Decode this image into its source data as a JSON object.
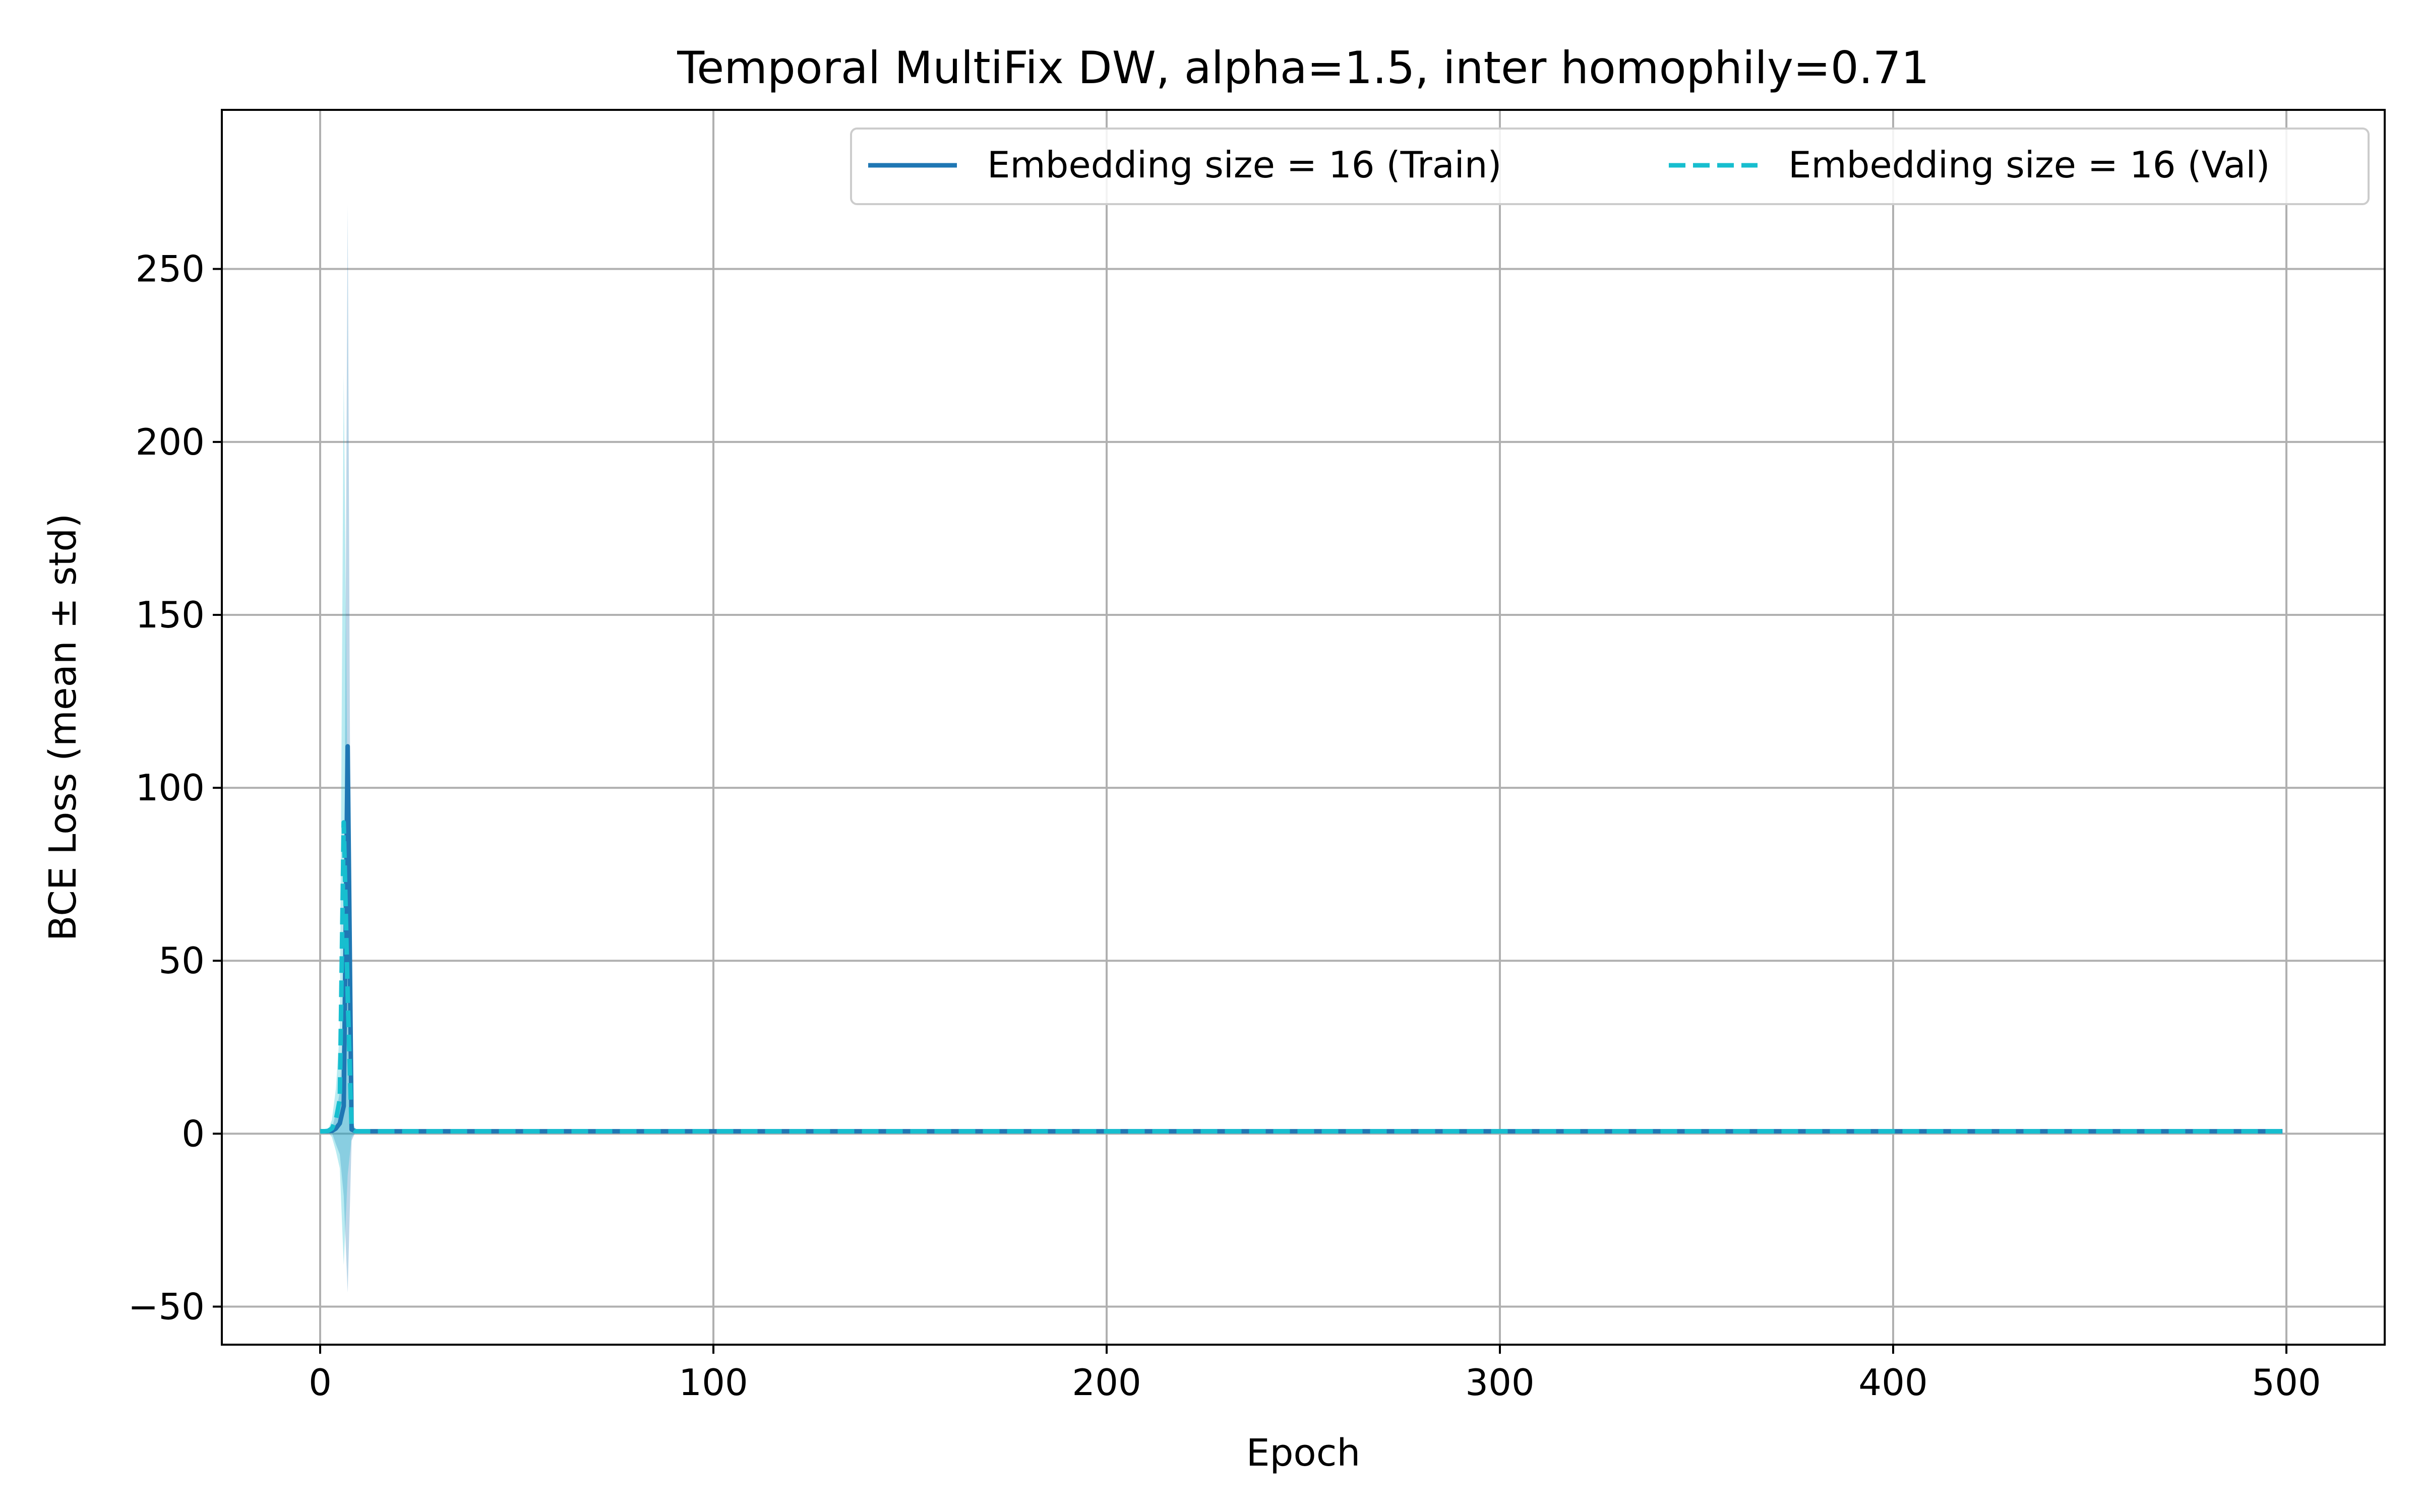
{
  "chart_data": {
    "type": "line",
    "title": "Temporal MultiFix DW, alpha=1.5, inter homophily=0.71",
    "xlabel": "Epoch",
    "ylabel": "BCE Loss (mean ± std)",
    "xlim": [
      -25,
      525
    ],
    "ylim": [
      -61,
      296
    ],
    "xticks": [
      0,
      100,
      200,
      300,
      400,
      500
    ],
    "xtick_labels": [
      "0",
      "100",
      "200",
      "300",
      "400",
      "500"
    ],
    "yticks": [
      -50,
      0,
      50,
      100,
      150,
      200,
      250
    ],
    "ytick_labels": [
      "−50",
      "0",
      "50",
      "100",
      "150",
      "200",
      "250"
    ],
    "grid": true,
    "legend_position": "top-right",
    "legend_columns": 2,
    "series": [
      {
        "name": "Embedding size = 16 (Train)",
        "color": "#1f77b4",
        "linestyle": "solid",
        "x": [
          0,
          1,
          2,
          3,
          4,
          5,
          6,
          7,
          8,
          9,
          10,
          20,
          50,
          100,
          150,
          200,
          250,
          300,
          350,
          400,
          450,
          499
        ],
        "mean": [
          0.7,
          0.7,
          0.7,
          0.8,
          1.5,
          3,
          8,
          112,
          1.2,
          0.7,
          0.7,
          0.69,
          0.69,
          0.69,
          0.69,
          0.69,
          0.69,
          0.69,
          0.69,
          0.69,
          0.69,
          0.69
        ],
        "lower": [
          0.6,
          0.6,
          0.5,
          0.3,
          -3,
          -6,
          -18,
          -46,
          -2,
          0.5,
          0.6,
          0.6,
          0.6,
          0.6,
          0.6,
          0.6,
          0.6,
          0.6,
          0.6,
          0.6,
          0.6,
          0.6
        ],
        "upper": [
          0.8,
          0.8,
          0.9,
          1.3,
          6,
          12,
          34,
          269,
          4.4,
          0.9,
          0.8,
          0.78,
          0.78,
          0.78,
          0.78,
          0.78,
          0.78,
          0.78,
          0.78,
          0.78,
          0.78,
          0.78
        ]
      },
      {
        "name": "Embedding size = 16 (Val)",
        "color": "#17becf",
        "linestyle": "dashed",
        "x": [
          0,
          1,
          2,
          3,
          4,
          5,
          6,
          7,
          8,
          9,
          10,
          20,
          50,
          100,
          150,
          200,
          250,
          300,
          350,
          400,
          450,
          499
        ],
        "mean": [
          0.7,
          0.7,
          0.8,
          1.5,
          4,
          10,
          90,
          40,
          1.5,
          0.7,
          0.7,
          0.69,
          0.69,
          0.69,
          0.69,
          0.69,
          0.69,
          0.69,
          0.69,
          0.69,
          0.69,
          0.69
        ],
        "lower": [
          0.6,
          0.6,
          0.5,
          -1,
          -5,
          -10,
          -38,
          -12,
          -1,
          0.5,
          0.6,
          0.6,
          0.6,
          0.6,
          0.6,
          0.6,
          0.6,
          0.6,
          0.6,
          0.6,
          0.6,
          0.6
        ],
        "upper": [
          0.8,
          0.8,
          1.1,
          4,
          13,
          30,
          220,
          92,
          4,
          0.9,
          0.8,
          0.78,
          0.78,
          0.78,
          0.78,
          0.78,
          0.78,
          0.78,
          0.78,
          0.78,
          0.78,
          0.78
        ]
      }
    ]
  }
}
